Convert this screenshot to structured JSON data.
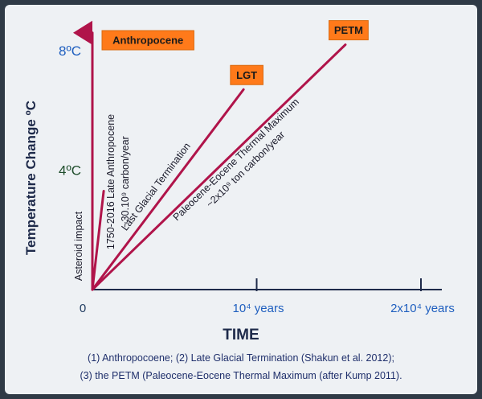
{
  "chart_data": {
    "type": "line",
    "ylabel": "Temperature Change ºC",
    "xlabel": "TIME",
    "y_ticks": [
      {
        "value": 4,
        "label": "4ºC",
        "color": "#1e4d2b"
      },
      {
        "value": 8,
        "label": "8ºC",
        "color": "#1f5fbf"
      }
    ],
    "x_ticks": [
      {
        "value": 0,
        "label": "0",
        "color": "#1e3a5f"
      },
      {
        "value": 10000,
        "label": "10⁴ years",
        "color": "#1f5fbf"
      },
      {
        "value": 20000,
        "label": "2x10⁴ years",
        "color": "#1f5fbf"
      }
    ],
    "xlim": [
      0,
      20000
    ],
    "ylim": [
      0,
      8
    ],
    "line_color": "#b0144a",
    "axis_color": "#1e2a4a",
    "series": [
      {
        "name": "Asteroid impact",
        "x": [
          0,
          200
        ],
        "y": [
          0,
          3.3
        ],
        "label_lines": [
          "Asteroid impact"
        ],
        "arrow": false
      },
      {
        "name": "Anthropocene",
        "x": [
          0,
          0
        ],
        "y": [
          0,
          8.6
        ],
        "label_lines": [
          "1750-2016 Late Anthropocene",
          "~30.10⁹ carbon/year"
        ],
        "arrow": true,
        "badge": "Anthropocene"
      },
      {
        "name": "Last Glacial Termination",
        "x": [
          0,
          9200
        ],
        "y": [
          0,
          6.7
        ],
        "label_lines": [
          "Last Glacial Termination"
        ],
        "arrow": false,
        "badge": "LGT"
      },
      {
        "name": "Paleocene-Eocene Thermal Maximum",
        "x": [
          0,
          15400
        ],
        "y": [
          0,
          8.2
        ],
        "label_lines": [
          "Paleocene-Eocene Thermal Maximum",
          "~2x10⁹ ton carbon/year"
        ],
        "arrow": false,
        "badge": "PETM"
      }
    ],
    "badge_style": {
      "fill": "#ff7a1a",
      "text": "#1a1a1a",
      "border": "#d96a10"
    }
  },
  "captions": [
    "(1) Anthropocoene; (2) Late Glacial Termination (Shakun et al. 2012);",
    "(3) the PETM (Paleocene-Eocene Thermal Maximum (after Kump 2011)."
  ]
}
